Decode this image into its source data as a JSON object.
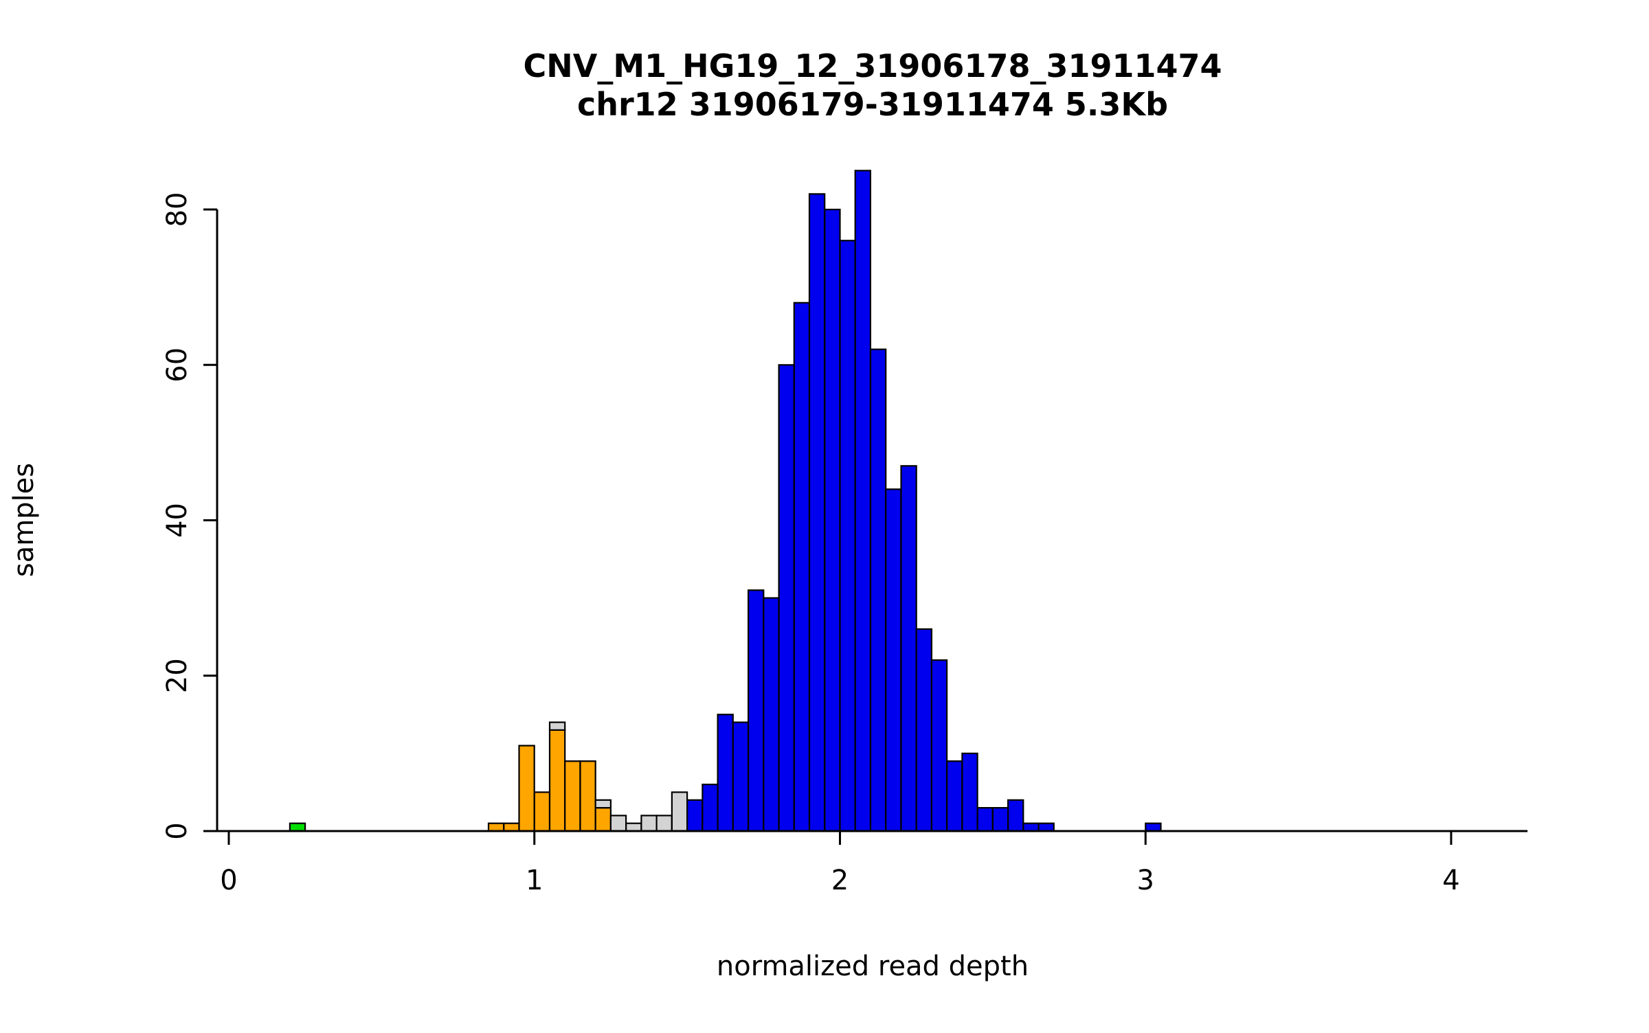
{
  "title": "CNV_M1_HG19_12_31906178_31911474",
  "subtitle": "chr12 31906179-31911474 5.3Kb",
  "chart_data": {
    "type": "bar",
    "chart_kind": "histogram",
    "title": "CNV_M1_HG19_12_31906178_31911474",
    "subtitle": "chr12 31906179-31911474 5.3Kb",
    "xlabel": "normalized read depth",
    "ylabel": "samples",
    "xlim": [
      0,
      4.25
    ],
    "ylim": [
      0,
      85
    ],
    "x_ticks": [
      0,
      1,
      2,
      3,
      4
    ],
    "y_ticks": [
      0,
      20,
      40,
      60,
      80
    ],
    "bin_width": 0.05,
    "grid": "off",
    "legend": "none",
    "colors": {
      "blue": "#0000EE",
      "orange": "#FFA500",
      "gray": "#D3D3D3",
      "green": "#00DD00",
      "bar_stroke": "#000000",
      "axis": "#000000"
    },
    "bars": [
      {
        "x": 0.2,
        "parts": [
          [
            "green",
            1
          ]
        ]
      },
      {
        "x": 0.85,
        "parts": [
          [
            "orange",
            1
          ]
        ]
      },
      {
        "x": 0.9,
        "parts": [
          [
            "orange",
            1
          ]
        ]
      },
      {
        "x": 0.95,
        "parts": [
          [
            "orange",
            11
          ]
        ]
      },
      {
        "x": 1.0,
        "parts": [
          [
            "orange",
            5
          ]
        ]
      },
      {
        "x": 1.05,
        "parts": [
          [
            "orange",
            13
          ],
          [
            "gray",
            1
          ]
        ]
      },
      {
        "x": 1.1,
        "parts": [
          [
            "orange",
            9
          ]
        ]
      },
      {
        "x": 1.15,
        "parts": [
          [
            "orange",
            9
          ]
        ]
      },
      {
        "x": 1.2,
        "parts": [
          [
            "orange",
            3
          ],
          [
            "gray",
            1
          ]
        ]
      },
      {
        "x": 1.25,
        "parts": [
          [
            "gray",
            2
          ]
        ]
      },
      {
        "x": 1.3,
        "parts": [
          [
            "gray",
            1
          ]
        ]
      },
      {
        "x": 1.35,
        "parts": [
          [
            "gray",
            2
          ]
        ]
      },
      {
        "x": 1.4,
        "parts": [
          [
            "gray",
            2
          ]
        ]
      },
      {
        "x": 1.45,
        "parts": [
          [
            "gray",
            5
          ]
        ]
      },
      {
        "x": 1.5,
        "parts": [
          [
            "blue",
            4
          ]
        ]
      },
      {
        "x": 1.55,
        "parts": [
          [
            "blue",
            6
          ]
        ]
      },
      {
        "x": 1.6,
        "parts": [
          [
            "blue",
            15
          ]
        ]
      },
      {
        "x": 1.65,
        "parts": [
          [
            "blue",
            14
          ]
        ]
      },
      {
        "x": 1.7,
        "parts": [
          [
            "blue",
            31
          ]
        ]
      },
      {
        "x": 1.75,
        "parts": [
          [
            "blue",
            30
          ]
        ]
      },
      {
        "x": 1.8,
        "parts": [
          [
            "blue",
            60
          ]
        ]
      },
      {
        "x": 1.85,
        "parts": [
          [
            "blue",
            68
          ]
        ]
      },
      {
        "x": 1.9,
        "parts": [
          [
            "blue",
            82
          ]
        ]
      },
      {
        "x": 1.95,
        "parts": [
          [
            "blue",
            80
          ]
        ]
      },
      {
        "x": 2.0,
        "parts": [
          [
            "blue",
            76
          ]
        ]
      },
      {
        "x": 2.05,
        "parts": [
          [
            "blue",
            85
          ]
        ]
      },
      {
        "x": 2.1,
        "parts": [
          [
            "blue",
            62
          ]
        ]
      },
      {
        "x": 2.15,
        "parts": [
          [
            "blue",
            44
          ]
        ]
      },
      {
        "x": 2.2,
        "parts": [
          [
            "blue",
            47
          ]
        ]
      },
      {
        "x": 2.25,
        "parts": [
          [
            "blue",
            26
          ]
        ]
      },
      {
        "x": 2.3,
        "parts": [
          [
            "blue",
            22
          ]
        ]
      },
      {
        "x": 2.35,
        "parts": [
          [
            "blue",
            9
          ]
        ]
      },
      {
        "x": 2.4,
        "parts": [
          [
            "blue",
            10
          ]
        ]
      },
      {
        "x": 2.45,
        "parts": [
          [
            "blue",
            3
          ]
        ]
      },
      {
        "x": 2.5,
        "parts": [
          [
            "blue",
            3
          ]
        ]
      },
      {
        "x": 2.55,
        "parts": [
          [
            "blue",
            4
          ]
        ]
      },
      {
        "x": 2.6,
        "parts": [
          [
            "blue",
            1
          ]
        ]
      },
      {
        "x": 2.65,
        "parts": [
          [
            "blue",
            1
          ]
        ]
      },
      {
        "x": 3.0,
        "parts": [
          [
            "blue",
            1
          ]
        ]
      }
    ]
  }
}
